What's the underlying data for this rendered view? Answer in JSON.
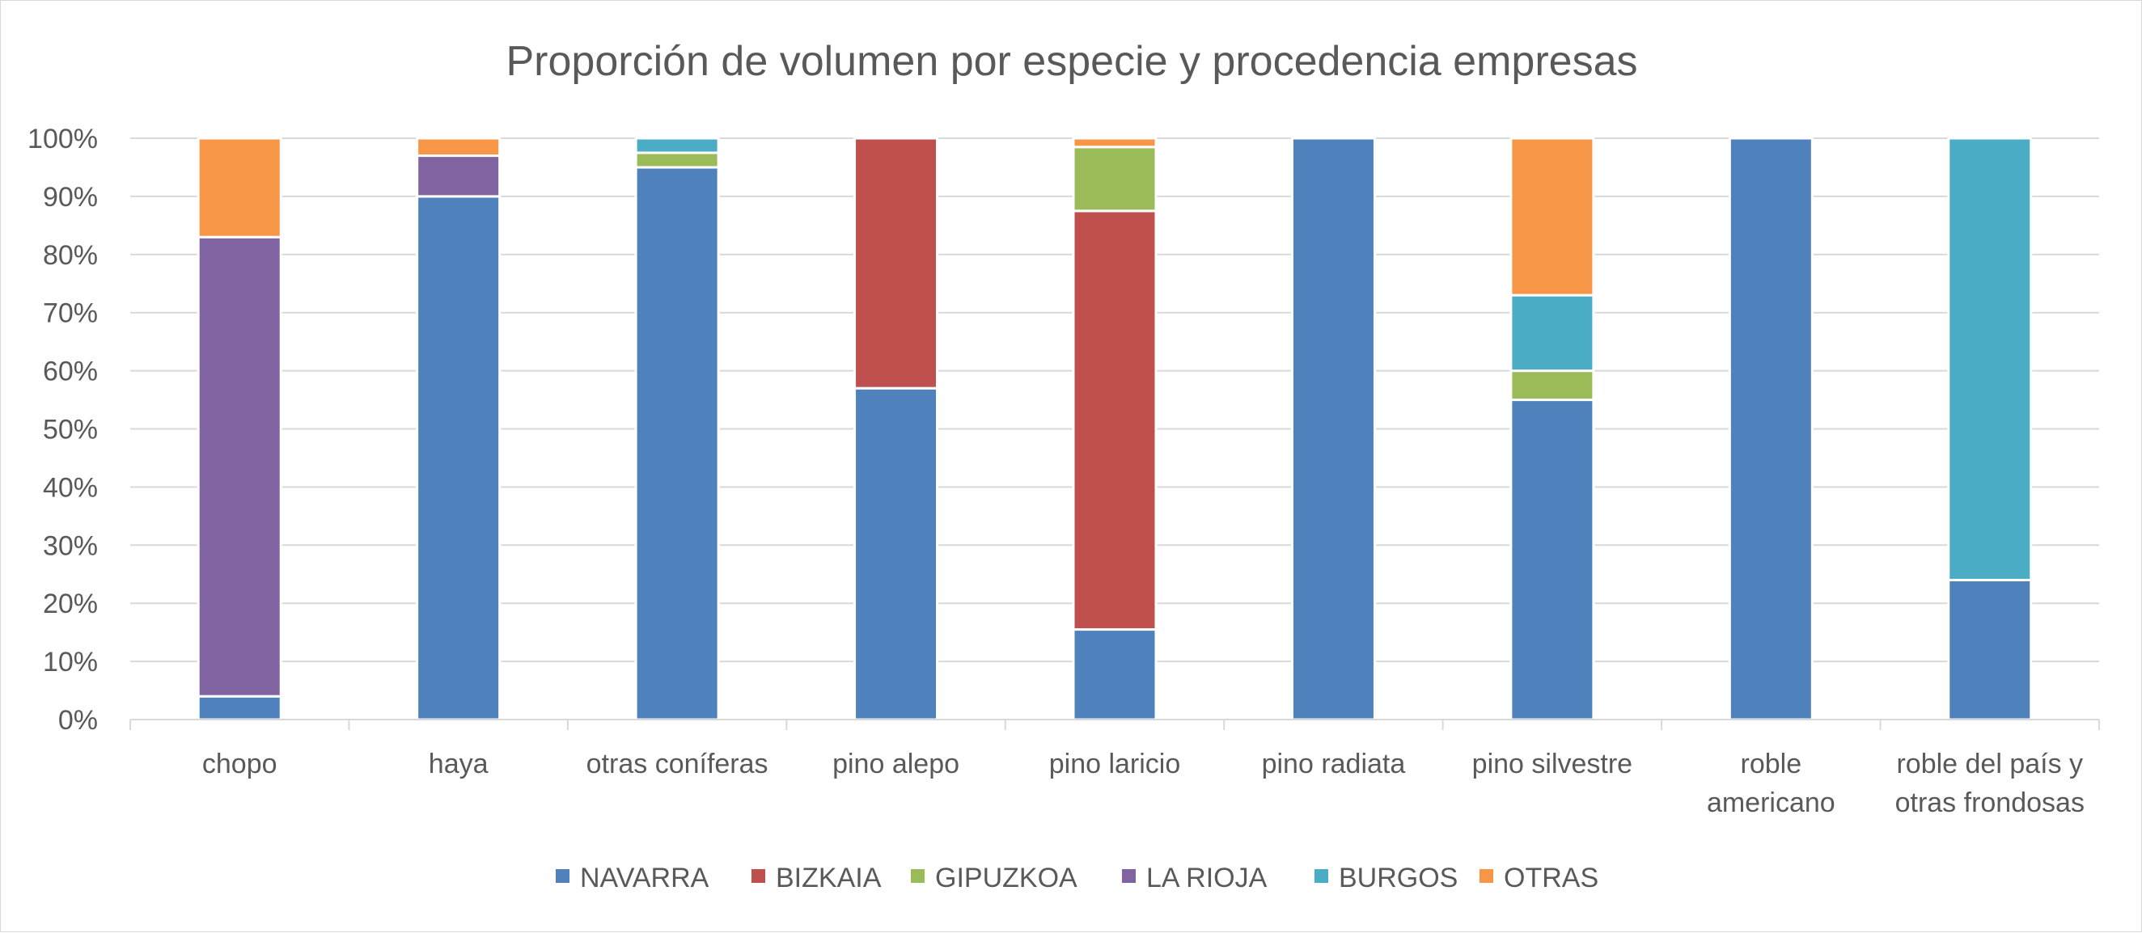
{
  "chart_data": {
    "type": "bar",
    "stacked": true,
    "normalized": true,
    "title": "Proporción de volumen por especie y procedencia empresas",
    "xlabel": "",
    "ylabel": "",
    "ylim": [
      0,
      100
    ],
    "y_ticks": [
      "0%",
      "10%",
      "20%",
      "30%",
      "40%",
      "50%",
      "60%",
      "70%",
      "80%",
      "90%",
      "100%"
    ],
    "grid": true,
    "legend_position": "bottom",
    "categories": [
      [
        "chopo"
      ],
      [
        "haya"
      ],
      [
        "otras coníferas"
      ],
      [
        "pino alepo"
      ],
      [
        "pino laricio"
      ],
      [
        "pino radiata"
      ],
      [
        "pino silvestre"
      ],
      [
        "roble",
        "americano"
      ],
      [
        "roble del país y",
        "otras frondosas"
      ]
    ],
    "series": [
      {
        "name": "NAVARRA",
        "color": "#4f81bd",
        "values": [
          4,
          90,
          95,
          57,
          15.5,
          100,
          55,
          100,
          24
        ]
      },
      {
        "name": "BIZKAIA",
        "color": "#c0504d",
        "values": [
          0,
          0,
          0,
          43,
          72,
          0,
          0,
          0,
          0
        ]
      },
      {
        "name": "GIPUZKOA",
        "color": "#9bbb59",
        "values": [
          0,
          0,
          2.5,
          0,
          11,
          0,
          5,
          0,
          0
        ]
      },
      {
        "name": "LA RIOJA",
        "color": "#8064a2",
        "values": [
          79,
          7,
          0,
          0,
          0,
          0,
          0,
          0,
          0
        ]
      },
      {
        "name": "BURGOS",
        "color": "#4bacc6",
        "values": [
          0,
          0,
          2.5,
          0,
          0,
          0,
          13,
          0,
          76
        ]
      },
      {
        "name": "OTRAS",
        "color": "#f79646",
        "values": [
          17,
          3,
          0,
          0,
          1.5,
          0,
          27,
          0,
          0
        ]
      }
    ]
  }
}
